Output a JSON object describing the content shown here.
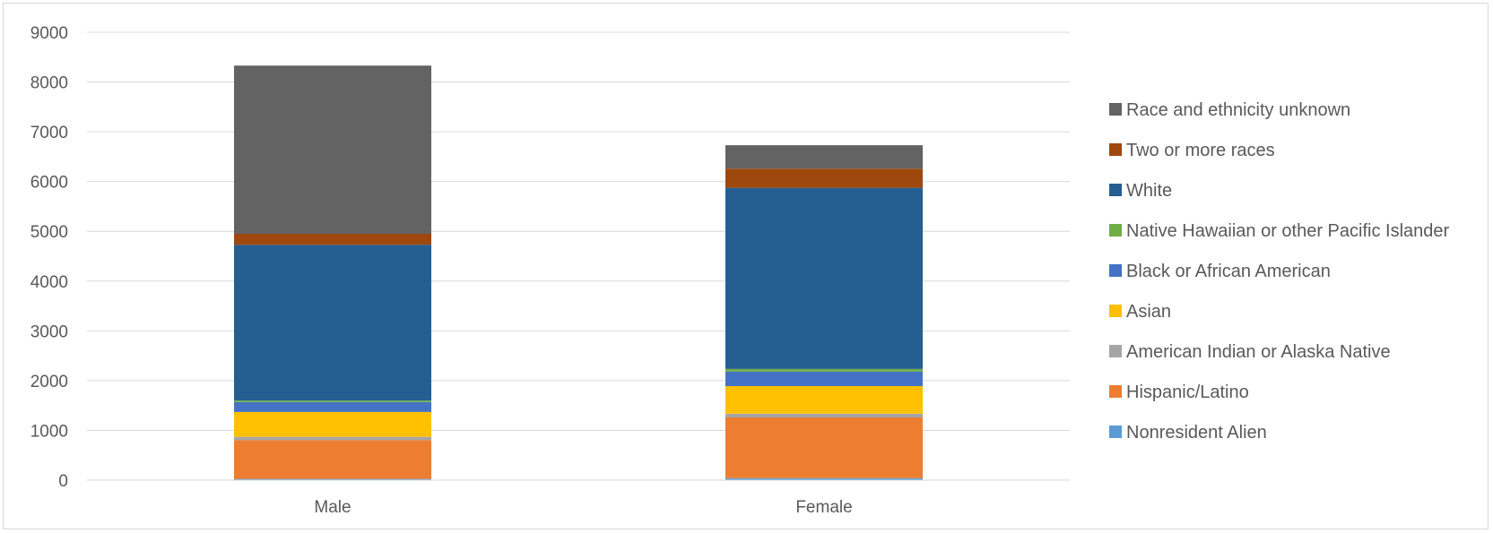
{
  "chart_data": {
    "type": "bar",
    "stacked": true,
    "title": "",
    "xlabel": "",
    "ylabel": "",
    "categories": [
      "Male",
      "Female"
    ],
    "ylim": [
      0,
      9000
    ],
    "yticks": [
      0,
      1000,
      2000,
      3000,
      4000,
      5000,
      6000,
      7000,
      8000,
      9000
    ],
    "grid": true,
    "legend_position": "right",
    "series": [
      {
        "name": "Nonresident Alien",
        "color": "#5b9bd5",
        "values": [
          25,
          40
        ]
      },
      {
        "name": "Hispanic/Latino",
        "color": "#ed7d31",
        "values": [
          780,
          1220
        ]
      },
      {
        "name": "American Indian or Alaska Native",
        "color": "#a5a5a5",
        "values": [
          65,
          75
        ]
      },
      {
        "name": "Asian",
        "color": "#ffc000",
        "values": [
          500,
          555
        ]
      },
      {
        "name": "Black or African American",
        "color": "#4472c4",
        "values": [
          200,
          290
        ]
      },
      {
        "name": "Native Hawaiian or other Pacific Islander",
        "color": "#70ad47",
        "values": [
          30,
          55
        ]
      },
      {
        "name": "White",
        "color": "#255e91",
        "values": [
          3130,
          3640
        ]
      },
      {
        "name": "Two or more races",
        "color": "#9e480e",
        "values": [
          220,
          385
        ]
      },
      {
        "name": "Race and ethnicity unknown",
        "color": "#636363",
        "values": [
          3380,
          470
        ]
      }
    ]
  }
}
